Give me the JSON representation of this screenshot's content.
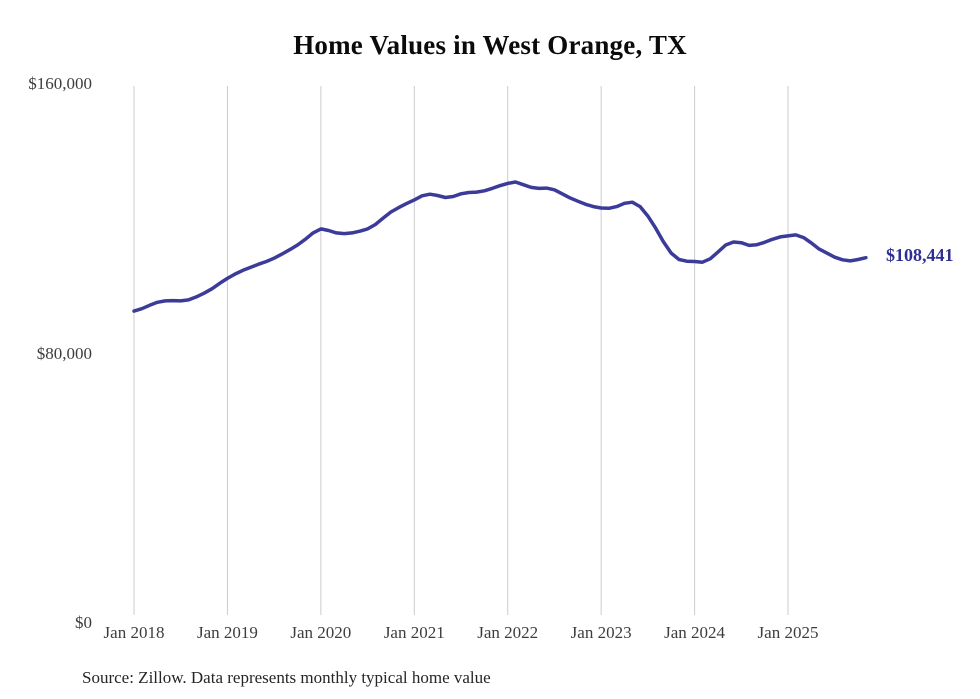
{
  "page": {
    "title": "Home Values in West Orange, TX",
    "source_note": "Source: Zillow. Data represents monthly typical home value"
  },
  "chart_data": {
    "type": "line",
    "title": "Home Values in West Orange, TX",
    "series_name": "Monthly typical home value",
    "grid": "vertical-only",
    "legend": "none",
    "ylim": [
      0,
      160000
    ],
    "line_color": "#3b3b99",
    "grid_color": "#cccccc",
    "label_color": "#3d3d3d",
    "end_label_color": "#2e2e93",
    "end_label": "$108,441",
    "end_value": 108441,
    "y_ticks": [
      {
        "label": "$160,000",
        "value": 160000
      },
      {
        "label": "$80,000",
        "value": 80000
      },
      {
        "label": "$0",
        "value": 0
      }
    ],
    "x_ticks": [
      {
        "label": "Jan 2018"
      },
      {
        "label": "Jan 2019"
      },
      {
        "label": "Jan 2020"
      },
      {
        "label": "Jan 2021"
      },
      {
        "label": "Jan 2022"
      },
      {
        "label": "Jan 2023"
      },
      {
        "label": "Jan 2024"
      },
      {
        "label": "Jan 2025"
      }
    ],
    "x": [
      "2018-01",
      "2018-02",
      "2018-03",
      "2018-04",
      "2018-05",
      "2018-06",
      "2018-07",
      "2018-08",
      "2018-09",
      "2018-10",
      "2018-11",
      "2018-12",
      "2019-01",
      "2019-02",
      "2019-03",
      "2019-04",
      "2019-05",
      "2019-06",
      "2019-07",
      "2019-08",
      "2019-09",
      "2019-10",
      "2019-11",
      "2019-12",
      "2020-01",
      "2020-02",
      "2020-03",
      "2020-04",
      "2020-05",
      "2020-06",
      "2020-07",
      "2020-08",
      "2020-09",
      "2020-10",
      "2020-11",
      "2020-12",
      "2021-01",
      "2021-02",
      "2021-03",
      "2021-04",
      "2021-05",
      "2021-06",
      "2021-07",
      "2021-08",
      "2021-09",
      "2021-10",
      "2021-11",
      "2021-12",
      "2022-01",
      "2022-02",
      "2022-03",
      "2022-04",
      "2022-05",
      "2022-06",
      "2022-07",
      "2022-08",
      "2022-09",
      "2022-10",
      "2022-11",
      "2022-12",
      "2023-01",
      "2023-02",
      "2023-03",
      "2023-04",
      "2023-05",
      "2023-06",
      "2023-07",
      "2023-08",
      "2023-09",
      "2023-10",
      "2023-11",
      "2023-12",
      "2024-01",
      "2024-02",
      "2024-03",
      "2024-04",
      "2024-05",
      "2024-06",
      "2024-07",
      "2024-08",
      "2024-09",
      "2024-10",
      "2024-11",
      "2024-12",
      "2025-01",
      "2025-02",
      "2025-03",
      "2025-04",
      "2025-05",
      "2025-06",
      "2025-07",
      "2025-08",
      "2025-09",
      "2025-10",
      "2025-11"
    ],
    "values": [
      92600,
      93300,
      94300,
      95200,
      95600,
      95700,
      95600,
      95900,
      96800,
      97900,
      99200,
      100800,
      102300,
      103600,
      104700,
      105600,
      106500,
      107300,
      108300,
      109500,
      110800,
      112200,
      113900,
      115800,
      117000,
      116500,
      115800,
      115600,
      115800,
      116300,
      117000,
      118300,
      120200,
      122000,
      123300,
      124500,
      125600,
      126800,
      127300,
      126900,
      126300,
      126600,
      127400,
      127800,
      127900,
      128300,
      129000,
      129800,
      130500,
      130900,
      130100,
      129300,
      129000,
      129100,
      128600,
      127400,
      126200,
      125200,
      124300,
      123600,
      123200,
      123100,
      123600,
      124600,
      124900,
      123600,
      120800,
      117200,
      113200,
      109800,
      107900,
      107400,
      107300,
      107100,
      108100,
      110100,
      112200,
      113100,
      112900,
      112100,
      112300,
      113000,
      113900,
      114600,
      114900,
      115200,
      114400,
      112800,
      111000,
      109800,
      108600,
      107800,
      107500,
      107900,
      108441
    ]
  }
}
